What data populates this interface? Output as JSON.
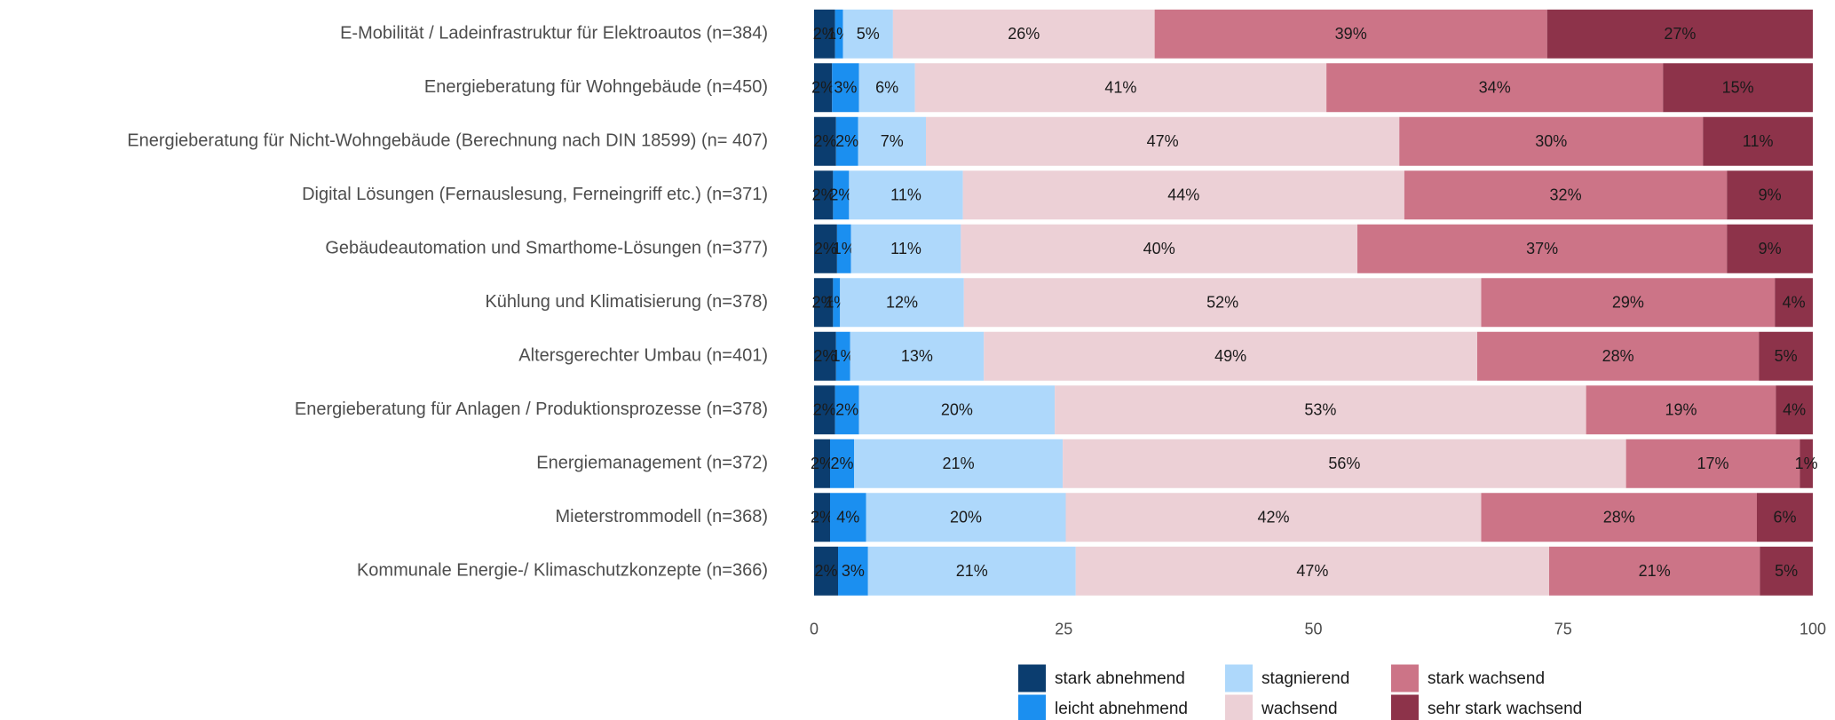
{
  "chart_data": {
    "type": "stacked_barh",
    "categories": [
      "E-Mobilität / Ladeinfrastruktur für Elektroautos (n=384)",
      "Energieberatung für Wohngebäude (n=450)",
      "Energieberatung für Nicht-Wohngebäude (Berechnung nach DIN 18599) (n= 407)",
      "Digital Lösungen (Fernauslesung, Ferneingriff etc.) (n=371)",
      "Gebäudeautomation und Smarthome-Lösungen (n=377)",
      "Kühlung und Klimatisierung (n=378)",
      "Altersgerechter Umbau (n=401)",
      "Energieberatung für Anlagen / Produktionsprozesse (n=378)",
      "Energiemanagement (n=372)",
      "Mieterstrommodell (n=368)",
      "Kommunale Energie-/ Klimaschutzkonzepte (n=366)"
    ],
    "series": [
      {
        "name": "stark abnehmend",
        "color": "#0b3d6f",
        "values": [
          2.1,
          1.8,
          2.2,
          1.9,
          2.3,
          1.9,
          2.2,
          2.1,
          1.6,
          1.6,
          2.4
        ],
        "value_labels": [
          "2%",
          "2%",
          "2%",
          "2%",
          "2%",
          "2%",
          "2%",
          "2%",
          "2%",
          "2%",
          "2%"
        ]
      },
      {
        "name": "leicht abnehmend",
        "color": "#1b8ff0",
        "values": [
          0.8,
          2.7,
          2.2,
          1.6,
          1.4,
          0.7,
          1.4,
          2.4,
          2.4,
          3.6,
          3.0
        ],
        "value_labels": [
          "1%",
          "3%",
          "2%",
          "2%",
          "1%",
          "1%",
          "1%",
          "2%",
          "2%",
          "4%",
          "3%"
        ]
      },
      {
        "name": "stagnierend",
        "color": "#aed8fb",
        "values": [
          5.0,
          5.6,
          6.8,
          11.4,
          11.0,
          12.4,
          13.4,
          19.6,
          20.9,
          20.0,
          20.8
        ],
        "value_labels": [
          "5%",
          "6%",
          "7%",
          "11%",
          "11%",
          "12%",
          "13%",
          "20%",
          "21%",
          "20%",
          "21%"
        ]
      },
      {
        "name": "wachsend",
        "color": "#ecd0d6",
        "values": [
          26.2,
          41.2,
          47.4,
          44.2,
          39.7,
          51.8,
          49.4,
          53.2,
          56.4,
          41.6,
          47.4
        ],
        "value_labels": [
          "26%",
          "41%",
          "47%",
          "44%",
          "40%",
          "52%",
          "49%",
          "53%",
          "56%",
          "42%",
          "47%"
        ]
      },
      {
        "name": "stark wachsend",
        "color": "#cc7487",
        "values": [
          39.3,
          33.7,
          30.4,
          32.3,
          37.0,
          29.4,
          28.2,
          19.0,
          17.4,
          27.6,
          21.1
        ],
        "value_labels": [
          "39%",
          "34%",
          "30%",
          "32%",
          "37%",
          "29%",
          "28%",
          "19%",
          "17%",
          "28%",
          "21%"
        ]
      },
      {
        "name": "sehr stark wachsend",
        "color": "#8d334a",
        "values": [
          26.6,
          15.0,
          11.0,
          8.6,
          8.6,
          3.8,
          5.4,
          3.7,
          1.3,
          5.6,
          5.3
        ],
        "value_labels": [
          "27%",
          "15%",
          "11%",
          "9%",
          "9%",
          "4%",
          "5%",
          "4%",
          "1%",
          "6%",
          "5%"
        ]
      }
    ],
    "xlim": [
      0,
      100
    ],
    "xticks": [
      0,
      25,
      50,
      75,
      100
    ],
    "grid": false,
    "legend": "bottom"
  }
}
